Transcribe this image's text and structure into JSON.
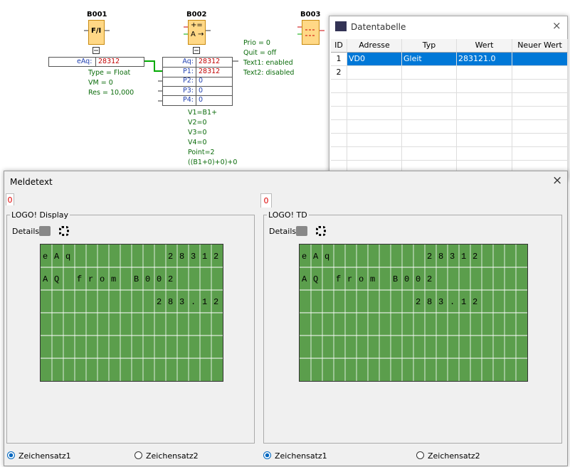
{
  "diagram": {
    "b001": {
      "name": "B001",
      "symbol": "F/I",
      "row_label": "eAq:",
      "row_value": "28312",
      "params": [
        "Type = Float",
        "VM = 0",
        "Res = 10,000"
      ]
    },
    "b002": {
      "name": "B002",
      "symbol_top": "+=",
      "symbol_bottom": "A →",
      "rows": [
        [
          "Aq:",
          "28312"
        ],
        [
          "P1:",
          "28312"
        ],
        [
          "P2:",
          "0"
        ],
        [
          "P3:",
          "0"
        ],
        [
          "P4:",
          "0"
        ]
      ],
      "params": [
        "V1=B1+",
        "V2=0",
        "V3=0",
        "V4=0",
        "Point=2",
        "((B1+0)+0)+0"
      ]
    },
    "b003": {
      "name": "B003",
      "params": [
        "Prio = 0",
        "Quit = off",
        "Text1: enabled",
        "Text2: disabled"
      ]
    }
  },
  "data_table": {
    "title": "Datentabelle",
    "columns": [
      "ID",
      "Adresse",
      "Typ",
      "Wert",
      "Neuer Wert"
    ],
    "rows": [
      [
        "1",
        "VD0",
        "Gleit",
        "283121.0"
      ],
      [
        "2"
      ]
    ]
  },
  "message_dialog": {
    "title": "Meldetext",
    "panels": [
      {
        "tab": "0",
        "group": "LOGO! Display",
        "details": "Details",
        "lines": [
          "eAq        28312",
          "AQ from B002",
          "          283.12"
        ],
        "options": [
          "Zeichensatz1",
          "Zeichensatz2"
        ]
      },
      {
        "tab": "0",
        "group": "LOGO! TD",
        "details": "Details",
        "lines": [
          "eAq        28312",
          "AQ from B002",
          "          283.12"
        ],
        "options": [
          "Zeichensatz1",
          "Zeichensatz2"
        ]
      }
    ]
  }
}
